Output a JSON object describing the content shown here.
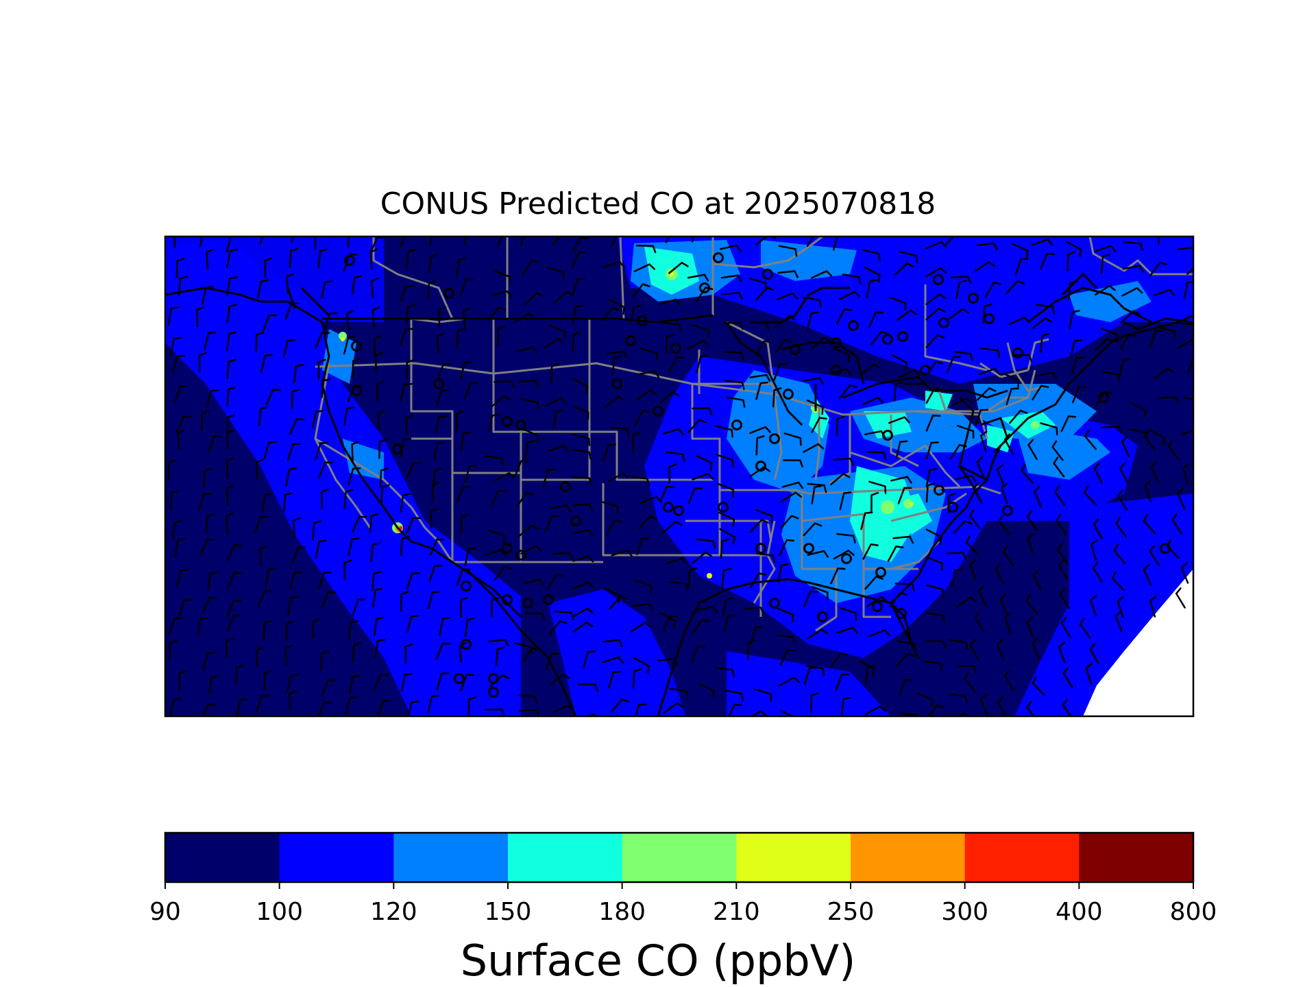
{
  "title": "CONUS Predicted CO at 2025070818",
  "colorbar": {
    "label": "Surface CO (ppbV)",
    "levels": [
      "90",
      "100",
      "120",
      "150",
      "180",
      "210",
      "250",
      "300",
      "400",
      "800"
    ],
    "colors": [
      "#00006b",
      "#0000ff",
      "#0080ff",
      "#10ffdf",
      "#7fff6f",
      "#e0ff18",
      "#ff9500",
      "#ff2000",
      "#7f0000"
    ]
  },
  "map": {
    "background_color": "#00006b",
    "state_border_color": "#808080",
    "coast_color": "#000000",
    "symbols": [
      "wind-barb",
      "calm-circle"
    ]
  }
}
